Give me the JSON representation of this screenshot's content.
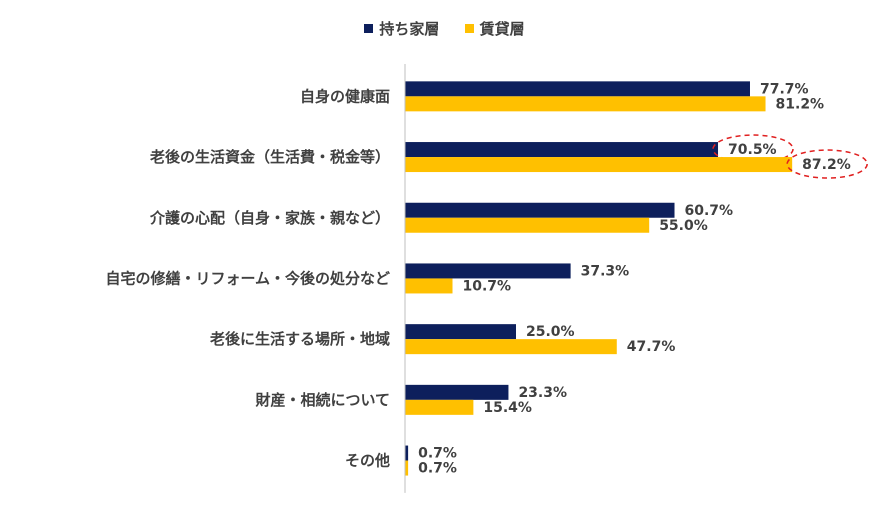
{
  "chart_data": {
    "type": "bar",
    "orientation": "horizontal",
    "categories": [
      "自身の健康面",
      "老後の生活資金（生活費・税金等）",
      "介護の心配（自身・家族・親など）",
      "自宅の修繕・リフォーム・今後の処分など",
      "老後に生活する場所・地域",
      "財産・相続について",
      "その他"
    ],
    "series": [
      {
        "name": "持ち家層",
        "color": "#0d1f5c",
        "values": [
          77.7,
          70.5,
          60.7,
          37.3,
          25.0,
          23.3,
          0.7
        ],
        "labels": [
          "77.7%",
          "70.5%",
          "60.7%",
          "37.3%",
          "25.0%",
          "23.3%",
          "0.7%"
        ]
      },
      {
        "name": "賃貸層",
        "color": "#ffc000",
        "values": [
          81.2,
          87.2,
          55.0,
          10.7,
          47.7,
          15.4,
          0.7
        ],
        "labels": [
          "81.2%",
          "87.2%",
          "55.0%",
          "10.7%",
          "47.7%",
          "15.4%",
          "0.7%"
        ]
      }
    ],
    "xlim": [
      0,
      100
    ],
    "grid": false,
    "legend_position": "top-center",
    "highlight_color": "#e02020",
    "highlights": [
      {
        "category": "老後の生活資金（生活費・税金等）",
        "series": "持ち家層"
      },
      {
        "category": "老後の生活資金（生活費・税金等）",
        "series": "賃貸層"
      }
    ]
  }
}
